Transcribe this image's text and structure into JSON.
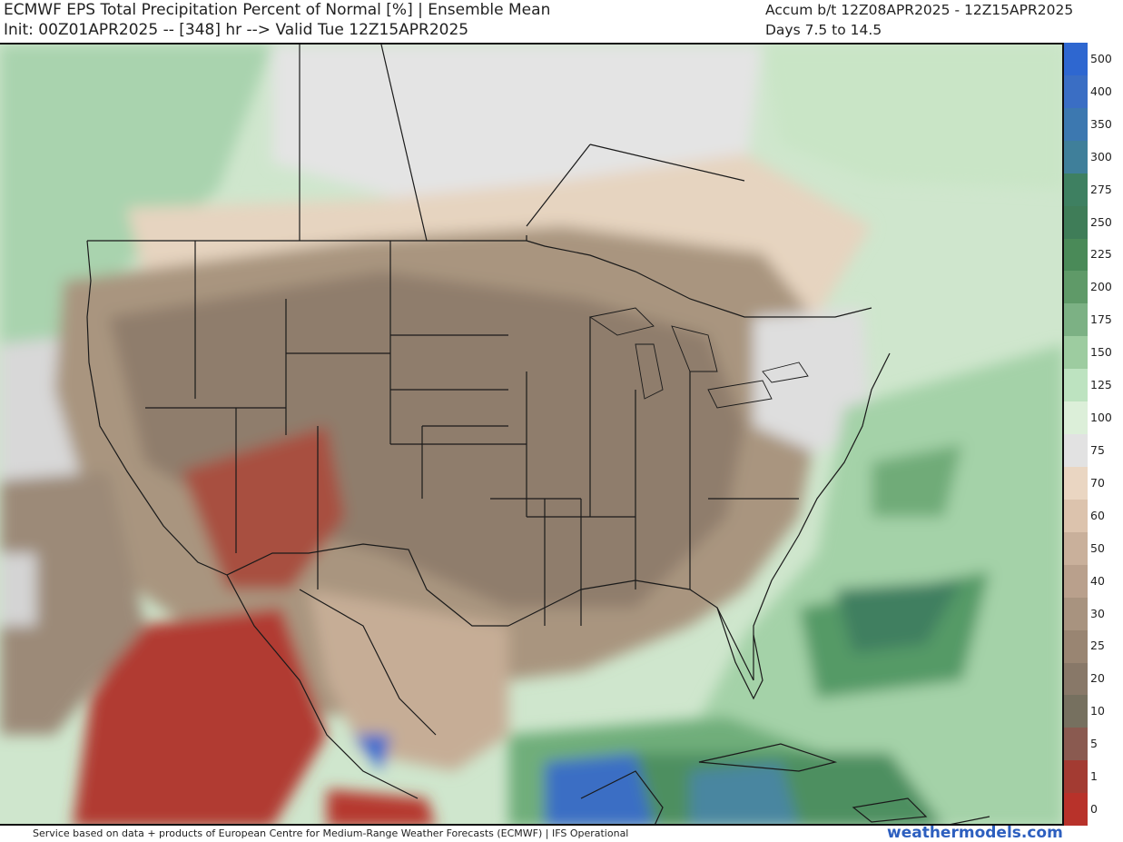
{
  "header": {
    "title_line1": "ECMWF EPS Total Precipitation Percent of Normal [%] | Ensemble Mean",
    "title_line2": "Init: 00Z01APR2025 -- [348] hr --> Valid Tue 12Z15APR2025",
    "accum_line1": "Accum b/t 12Z08APR2025 - 12Z15APR2025",
    "accum_line2": "Days 7.5 to 14.5"
  },
  "colorbar": {
    "levels": [
      {
        "label": "500",
        "color": "#2e67d0"
      },
      {
        "label": "400",
        "color": "#3a6ec4"
      },
      {
        "label": "350",
        "color": "#3c78b0"
      },
      {
        "label": "300",
        "color": "#3f7f9a"
      },
      {
        "label": "275",
        "color": "#3e8061"
      },
      {
        "label": "250",
        "color": "#3f7d58"
      },
      {
        "label": "225",
        "color": "#4a8a58"
      },
      {
        "label": "200",
        "color": "#5f9a68"
      },
      {
        "label": "175",
        "color": "#7cb184"
      },
      {
        "label": "150",
        "color": "#9dcca0"
      },
      {
        "label": "125",
        "color": "#bde3c0"
      },
      {
        "label": "100",
        "color": "#dcefd9"
      },
      {
        "label": "75",
        "color": "#e2e2e2"
      },
      {
        "label": "70",
        "color": "#ead6c2"
      },
      {
        "label": "60",
        "color": "#dcc3ad"
      },
      {
        "label": "50",
        "color": "#c9b09b"
      },
      {
        "label": "40",
        "color": "#b9a08c"
      },
      {
        "label": "30",
        "color": "#a8937f"
      },
      {
        "label": "25",
        "color": "#998572"
      },
      {
        "label": "20",
        "color": "#887868"
      },
      {
        "label": "10",
        "color": "#76705f"
      },
      {
        "label": "5",
        "color": "#8a5a50"
      },
      {
        "label": "1",
        "color": "#a33b32"
      },
      {
        "label": "0",
        "color": "#b8322a"
      }
    ]
  },
  "footer": {
    "credit": "Service based on data + products of European Centre for Medium-Range Weather Forecasts (ECMWF) | IFS Operational",
    "site": "weathermodels.com"
  }
}
